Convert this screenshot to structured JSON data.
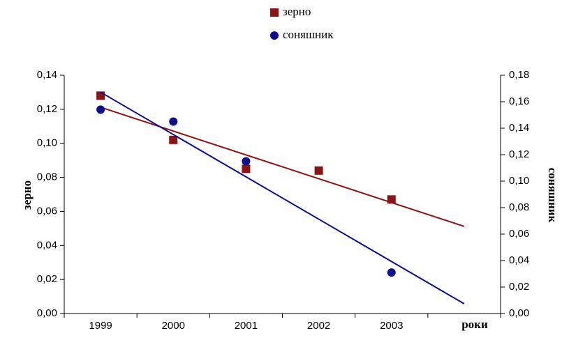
{
  "chart_data": {
    "type": "scatter",
    "categories": [
      "1999",
      "2000",
      "2001",
      "2002",
      "2003",
      null
    ],
    "xlabel": "роки",
    "ylabel": "зерно",
    "y2label": "соняшник",
    "ylim": [
      0,
      0.14
    ],
    "yticks": [
      {
        "value": 0,
        "label": "0,00"
      },
      {
        "value": 0.02,
        "label": "0,02"
      },
      {
        "value": 0.04,
        "label": "0,04"
      },
      {
        "value": 0.06,
        "label": "0,06"
      },
      {
        "value": 0.08,
        "label": "0,08"
      },
      {
        "value": 0.1,
        "label": "0,10"
      },
      {
        "value": 0.12,
        "label": "0,12"
      },
      {
        "value": 0.14,
        "label": "0,14"
      }
    ],
    "y2lim": [
      0,
      0.18
    ],
    "y2ticks": [
      {
        "value": 0,
        "label": "0,00"
      },
      {
        "value": 0.02,
        "label": "0,02"
      },
      {
        "value": 0.04,
        "label": "0,04"
      },
      {
        "value": 0.06,
        "label": "0,06"
      },
      {
        "value": 0.08,
        "label": "0,08"
      },
      {
        "value": 0.1,
        "label": "0,10"
      },
      {
        "value": 0.12,
        "label": "0,12"
      },
      {
        "value": 0.14,
        "label": "0,14"
      },
      {
        "value": 0.16,
        "label": "0,16"
      },
      {
        "value": 0.18,
        "label": "0,18"
      }
    ],
    "legend": "top",
    "trendline": "linear",
    "series": [
      {
        "name": "зерно",
        "color": "#8b1414",
        "marker": "square",
        "values": [
          0.128,
          0.102,
          0.085,
          0.084,
          0.067,
          null
        ]
      },
      {
        "name": "соняшник",
        "color": "#0c0c8c",
        "marker": "circle",
        "axis": "y2",
        "values": [
          0.154,
          0.145,
          0.115,
          null,
          0.031,
          null
        ]
      }
    ]
  }
}
